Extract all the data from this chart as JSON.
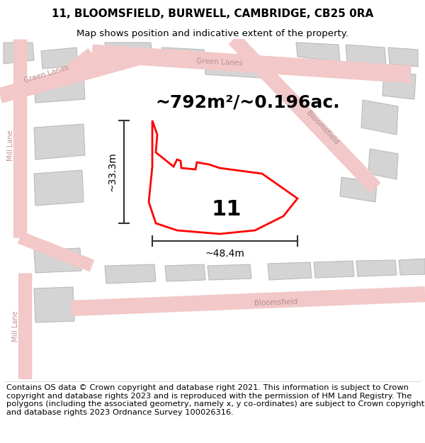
{
  "title": "11, BLOOMSFIELD, BURWELL, CAMBRIDGE, CB25 0RA",
  "subtitle": "Map shows position and indicative extent of the property.",
  "footer": "Contains OS data © Crown copyright and database right 2021. This information is subject to Crown copyright and database rights 2023 and is reproduced with the permission of HM Land Registry. The polygons (including the associated geometry, namely x, y co-ordinates) are subject to Crown copyright and database rights 2023 Ordnance Survey 100026316.",
  "area_label": "~792m²/~0.196ac.",
  "width_label": "~48.4m",
  "height_label": "~33.3m",
  "parcel_number": "11",
  "road_color": "#f2c8c8",
  "road_outline_color": "#e8b0b0",
  "building_color": "#d4d4d4",
  "building_edge_color": "#bbbbbb",
  "parcel_color": "#ff0000",
  "dimension_color": "#333333",
  "map_bg": "#f7f4f2",
  "title_fontsize": 11,
  "subtitle_fontsize": 9.5,
  "footer_fontsize": 8.2,
  "area_fontsize": 18,
  "parcel_fontsize": 22,
  "dim_fontsize": 10
}
